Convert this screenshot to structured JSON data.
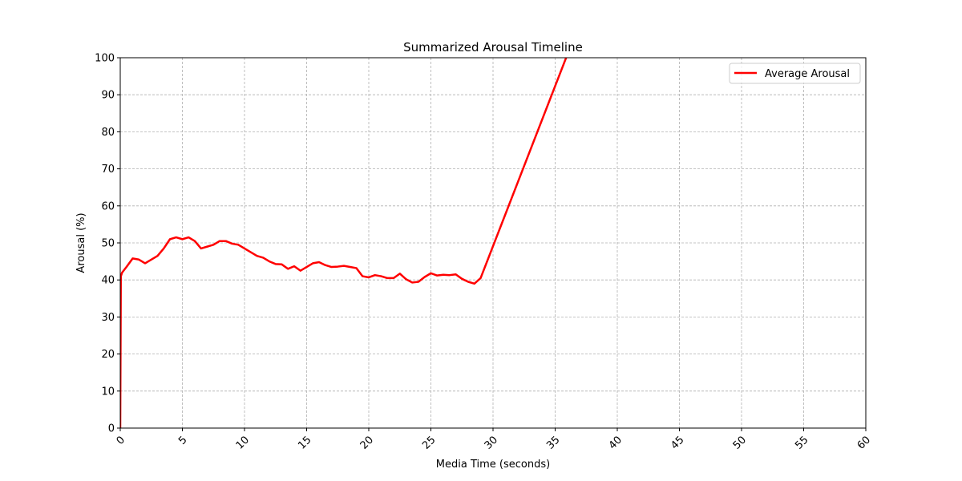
{
  "chart_data": {
    "type": "line",
    "title": "Summarized Arousal Timeline",
    "xlabel": "Media Time (seconds)",
    "ylabel": "Arousal (%)",
    "xlim": [
      0,
      60
    ],
    "ylim": [
      0,
      100
    ],
    "xticks": [
      0,
      5,
      10,
      15,
      20,
      25,
      30,
      35,
      40,
      45,
      50,
      55,
      60
    ],
    "yticks": [
      0,
      10,
      20,
      30,
      40,
      50,
      60,
      70,
      80,
      90,
      100
    ],
    "x_tick_rotation_deg": 45,
    "grid": true,
    "grid_style": "dashed",
    "legend_position": "top-right",
    "series": [
      {
        "name": "Average Arousal",
        "color": "#ff0000",
        "x": [
          0,
          0.05,
          0.15,
          0.5,
          1.0,
          1.5,
          2.0,
          2.5,
          3.0,
          3.5,
          4.0,
          4.5,
          5.0,
          5.5,
          6.0,
          6.5,
          7.0,
          7.5,
          8.0,
          8.5,
          9.0,
          9.5,
          10.0,
          10.5,
          11.0,
          11.5,
          12.0,
          12.5,
          13.0,
          13.5,
          14.0,
          14.5,
          15.0,
          15.5,
          16.0,
          16.5,
          17.0,
          17.5,
          18.0,
          18.5,
          19.0,
          19.5,
          20.0,
          20.5,
          21.0,
          21.5,
          22.0,
          22.5,
          23.0,
          23.5,
          24.0,
          24.5,
          25.0,
          25.5,
          26.0,
          26.5,
          27.0,
          27.5,
          28.0,
          28.5,
          29.0,
          36.0
        ],
        "values": [
          0,
          41,
          42,
          43.5,
          45.8,
          45.5,
          44.5,
          45.5,
          46.5,
          48.5,
          51,
          51.5,
          51,
          51.5,
          50.5,
          48.5,
          49,
          49.5,
          50.5,
          50.5,
          49.8,
          49.5,
          48.5,
          47.5,
          46.5,
          46,
          45,
          44.3,
          44.2,
          43,
          43.7,
          42.5,
          43.5,
          44.5,
          44.8,
          44,
          43.5,
          43.6,
          43.8,
          43.5,
          43.2,
          41,
          40.7,
          41.3,
          41,
          40.5,
          40.5,
          41.7,
          40.2,
          39.3,
          39.5,
          40.8,
          41.8,
          41.2,
          41.4,
          41.3,
          41.5,
          40.3,
          39.5,
          39.0,
          40.5,
          101
        ]
      }
    ]
  }
}
